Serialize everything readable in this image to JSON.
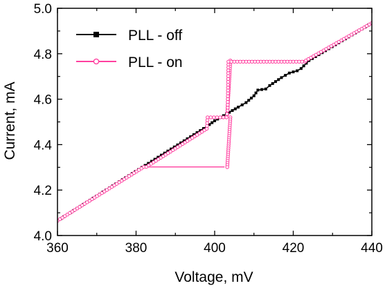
{
  "chart_data": {
    "type": "line",
    "xlabel": "Voltage, mV",
    "ylabel": "Current, mA",
    "xlim": [
      360,
      440
    ],
    "ylim": [
      4.0,
      5.0
    ],
    "xticks": [
      "360",
      "380",
      "400",
      "420",
      "440"
    ],
    "yticks": [
      "4.0",
      "4.2",
      "4.4",
      "4.6",
      "4.8",
      "5.0"
    ],
    "legend_position": "top-left",
    "series": [
      {
        "name": "PLL - off",
        "color": "#000000",
        "marker": "filled-square",
        "points": [
          [
            360,
            4.065
          ],
          [
            398,
            4.48
          ],
          [
            400,
            4.505
          ],
          [
            403,
            4.535
          ],
          [
            406,
            4.565
          ],
          [
            408,
            4.585
          ],
          [
            410,
            4.615
          ],
          [
            411,
            4.64
          ],
          [
            413,
            4.645
          ],
          [
            414,
            4.66
          ],
          [
            417,
            4.695
          ],
          [
            419,
            4.715
          ],
          [
            421,
            4.725
          ],
          [
            422,
            4.735
          ],
          [
            424,
            4.77
          ],
          [
            440,
            4.935
          ]
        ]
      },
      {
        "name": "PLL - on",
        "color": "#ff3f9f",
        "marker": "open-circle",
        "points": [
          [
            360,
            4.065
          ],
          [
            382,
            4.302
          ],
          [
            382.6,
            4.302
          ],
          [
            398,
            4.47
          ],
          [
            398.2,
            4.52
          ],
          [
            403,
            4.52
          ],
          [
            403.3,
            4.55
          ],
          [
            403.5,
            4.765
          ],
          [
            423,
            4.765
          ],
          [
            423.2,
            4.77
          ],
          [
            440,
            4.935
          ]
        ],
        "transition_lines": [
          [
            [
              382.6,
              4.302
            ],
            [
              402.5,
              4.302
            ]
          ],
          [
            [
              398.2,
              4.52
            ],
            [
              403.2,
              4.52
            ]
          ],
          [
            [
              403.6,
              4.77
            ],
            [
              423,
              4.77
            ]
          ]
        ],
        "vertical_jumps": [
          [
            [
              403.2,
              4.3
            ],
            [
              404.0,
              4.52
            ]
          ],
          [
            [
              403.2,
              4.53
            ],
            [
              404.0,
              4.77
            ]
          ]
        ]
      }
    ]
  }
}
